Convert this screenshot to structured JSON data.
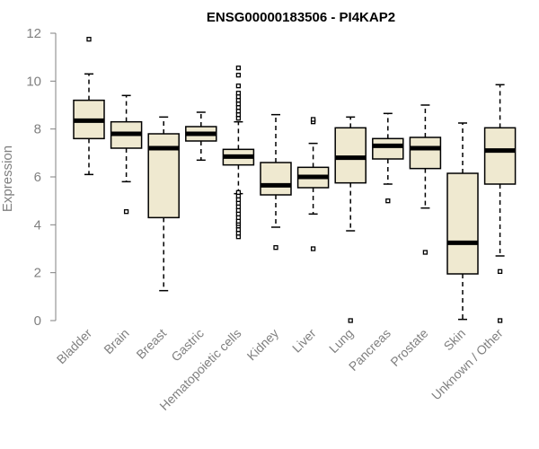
{
  "chart_data": {
    "type": "box",
    "title": "ENSG00000183506 - PI4KAP2",
    "xlabel": "",
    "ylabel": "Expression",
    "ylim": [
      0,
      12
    ],
    "yticks": [
      0,
      2,
      4,
      6,
      8,
      10,
      12
    ],
    "box_fill": "#efe9d0",
    "categories": [
      "Bladder",
      "Brain",
      "Breast",
      "Gastric",
      "Hematopoietic cells",
      "Kidney",
      "Liver",
      "Lung",
      "Pancreas",
      "Prostate",
      "Skin",
      "Unknown / Other"
    ],
    "boxes": [
      {
        "label": "Bladder",
        "whisker_low": 6.1,
        "q1": 7.6,
        "median": 8.35,
        "q3": 9.2,
        "whisker_high": 10.3,
        "outliers": [
          11.75
        ]
      },
      {
        "label": "Brain",
        "whisker_low": 5.8,
        "q1": 7.2,
        "median": 7.8,
        "q3": 8.3,
        "whisker_high": 9.4,
        "outliers": [
          4.55
        ]
      },
      {
        "label": "Breast",
        "whisker_low": 1.25,
        "q1": 4.3,
        "median": 7.2,
        "q3": 7.8,
        "whisker_high": 8.5,
        "outliers": []
      },
      {
        "label": "Gastric",
        "whisker_low": 6.7,
        "q1": 7.5,
        "median": 7.8,
        "q3": 8.1,
        "whisker_high": 8.7,
        "outliers": []
      },
      {
        "label": "Hematopoietic cells",
        "whisker_low": 5.3,
        "q1": 6.5,
        "median": 6.85,
        "q3": 7.15,
        "whisker_high": 8.3,
        "outliers": [
          3.5,
          3.65,
          3.8,
          3.95,
          4.05,
          4.15,
          4.3,
          4.45,
          4.6,
          4.75,
          4.9,
          5.05,
          5.2,
          5.35,
          8.45,
          8.6,
          8.75,
          8.9,
          9.05,
          9.2,
          9.35,
          9.5,
          9.8,
          10.25,
          10.55
        ]
      },
      {
        "label": "Kidney",
        "whisker_low": 3.9,
        "q1": 5.25,
        "median": 5.65,
        "q3": 6.6,
        "whisker_high": 8.6,
        "outliers": [
          3.05
        ]
      },
      {
        "label": "Liver",
        "whisker_low": 4.45,
        "q1": 5.55,
        "median": 6.0,
        "q3": 6.4,
        "whisker_high": 7.4,
        "outliers": [
          3.0,
          8.3,
          8.4
        ]
      },
      {
        "label": "Lung",
        "whisker_low": 3.75,
        "q1": 5.75,
        "median": 6.8,
        "q3": 8.05,
        "whisker_high": 8.5,
        "outliers": [
          0.0
        ]
      },
      {
        "label": "Pancreas",
        "whisker_low": 5.7,
        "q1": 6.75,
        "median": 7.3,
        "q3": 7.6,
        "whisker_high": 8.65,
        "outliers": [
          5.0
        ]
      },
      {
        "label": "Prostate",
        "whisker_low": 4.7,
        "q1": 6.35,
        "median": 7.2,
        "q3": 7.65,
        "whisker_high": 9.0,
        "outliers": [
          2.85
        ]
      },
      {
        "label": "Skin",
        "whisker_low": 0.05,
        "q1": 1.95,
        "median": 3.25,
        "q3": 6.15,
        "whisker_high": 8.25,
        "outliers": []
      },
      {
        "label": "Unknown / Other",
        "whisker_low": 2.7,
        "q1": 5.7,
        "median": 7.1,
        "q3": 8.05,
        "whisker_high": 9.85,
        "outliers": [
          0.0,
          2.05
        ]
      }
    ]
  }
}
